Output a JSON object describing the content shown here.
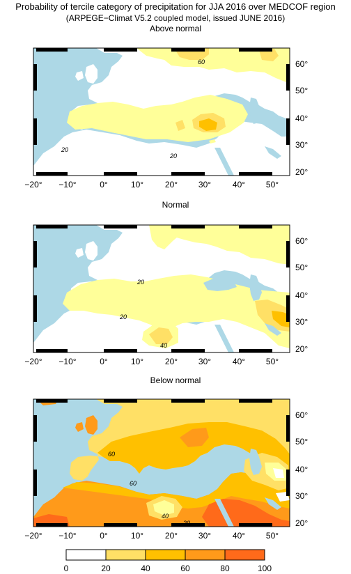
{
  "title_line1": "Probability of tercile category of precipitation for JJA 2016 over MEDCOF region",
  "title_line2": "(ARPEGE−Climat V5.2 coupled model, issued JUNE 2016)",
  "panels": [
    {
      "title": "Above normal",
      "contour_labels": [
        "60",
        "20",
        "20"
      ]
    },
    {
      "title": "Normal",
      "contour_labels": [
        "20",
        "20",
        "40"
      ]
    },
    {
      "title": "Below normal",
      "contour_labels": [
        "60",
        "60",
        "40",
        "20"
      ]
    }
  ],
  "lon_ticks": [
    "−20°",
    "−10°",
    "0°",
    "10°",
    "20°",
    "30°",
    "40°",
    "50°"
  ],
  "lat_ticks": [
    "60°",
    "50°",
    "40°",
    "30°",
    "20°"
  ],
  "colorbar": {
    "labels": [
      "0",
      "20",
      "40",
      "60",
      "80",
      "100"
    ],
    "colors": [
      "#ffffff",
      "#ffff99",
      "#ffe066",
      "#ffc000",
      "#ff9a1a",
      "#ff6a1a"
    ]
  },
  "colors": {
    "sea": "#add8e6",
    "land_white": "#ffffff"
  }
}
